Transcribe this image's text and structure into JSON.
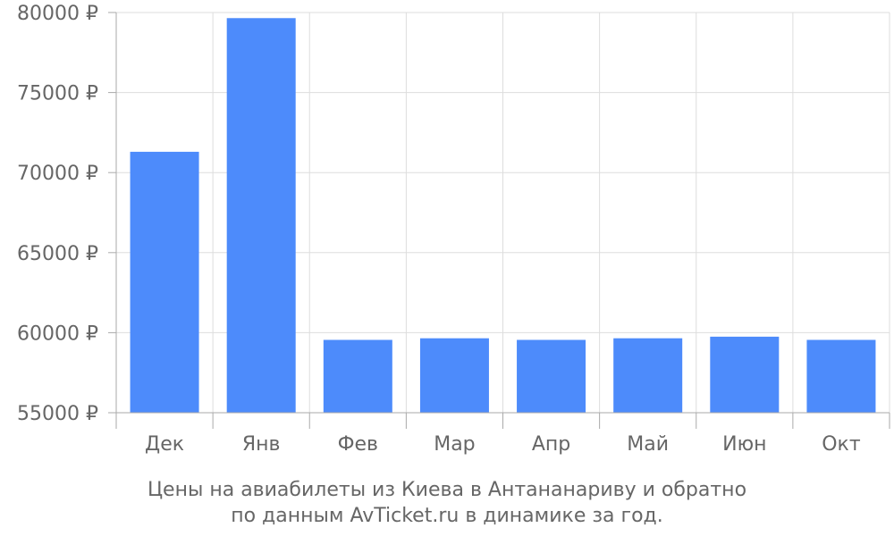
{
  "chart_data": {
    "type": "bar",
    "categories": [
      "Дек",
      "Янв",
      "Фев",
      "Мар",
      "Апр",
      "Май",
      "Июн",
      "Окт"
    ],
    "values": [
      71300,
      79650,
      59550,
      59650,
      59550,
      59650,
      59750,
      59550
    ],
    "ylim": [
      55000,
      80000
    ],
    "yticks": [
      55000,
      60000,
      65000,
      70000,
      75000,
      80000
    ],
    "ytick_labels": [
      "55000 ₽",
      "60000 ₽",
      "65000 ₽",
      "70000 ₽",
      "75000 ₽",
      "80000 ₽"
    ],
    "grid": true,
    "bar_color": "#4d8bfb",
    "caption_line1": "Цены на авиабилеты из Киева в Антананариву и обратно",
    "caption_line2": "по данным AvTicket.ru в динамике за год."
  }
}
